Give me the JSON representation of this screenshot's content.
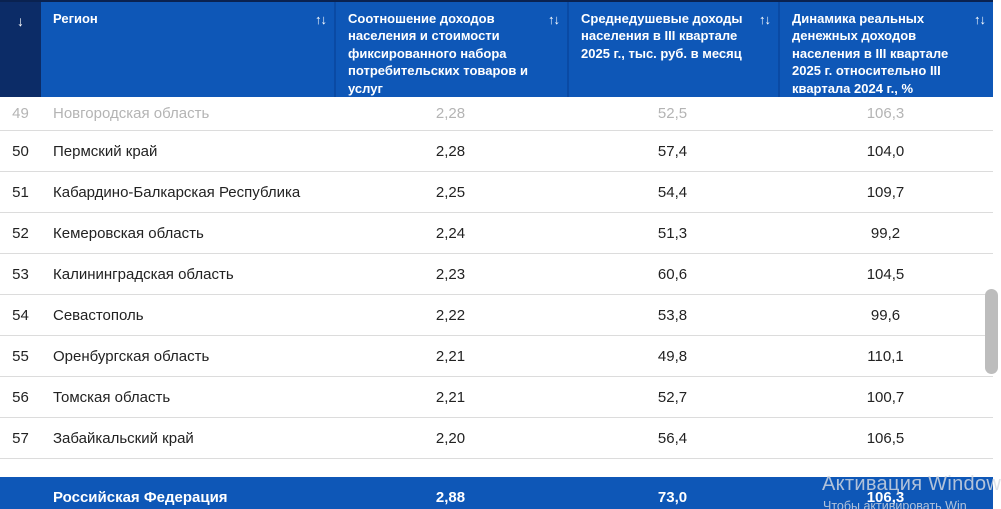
{
  "colors": {
    "header_blue": "#0e57b7",
    "rank_column_navy": "#0c2c67",
    "header_separator_blue": "#0a4aa4",
    "row_divider_gray": "#dcdcdc",
    "muted_row_text": "#b4b4b4",
    "scrollbar_thumb": "#bdbdbd"
  },
  "table": {
    "rank_header": {
      "sort_icon": "↓"
    },
    "columns": [
      {
        "label": "Регион",
        "sort_icon": "↑↓"
      },
      {
        "label": "Соотношение доходов населения и стоимости фиксированного набора потребительских товаров и услуг",
        "sort_icon": "↑↓"
      },
      {
        "label": "Среднедушевые доходы населения в III квартале 2025 г., тыс. руб. в месяц",
        "sort_icon": "↑↓"
      },
      {
        "label": "Динамика реальных денежных доходов населения в III квартале 2025 г. относительно III квартала 2024 г., %",
        "sort_icon": "↑↓"
      }
    ],
    "rows": [
      {
        "rank": "49",
        "region": "Новгородская область",
        "ratio": "2,28",
        "income": "52,5",
        "dynamics": "106,3",
        "muted": true
      },
      {
        "rank": "50",
        "region": "Пермский край",
        "ratio": "2,28",
        "income": "57,4",
        "dynamics": "104,0",
        "muted": false
      },
      {
        "rank": "51",
        "region": "Кабардино-Балкарская Республика",
        "ratio": "2,25",
        "income": "54,4",
        "dynamics": "109,7",
        "muted": false
      },
      {
        "rank": "52",
        "region": "Кемеровская область",
        "ratio": "2,24",
        "income": "51,3",
        "dynamics": "99,2",
        "muted": false
      },
      {
        "rank": "53",
        "region": "Калининградская область",
        "ratio": "2,23",
        "income": "60,6",
        "dynamics": "104,5",
        "muted": false
      },
      {
        "rank": "54",
        "region": "Севастополь",
        "ratio": "2,22",
        "income": "53,8",
        "dynamics": "99,6",
        "muted": false
      },
      {
        "rank": "55",
        "region": "Оренбургская область",
        "ratio": "2,21",
        "income": "49,8",
        "dynamics": "110,1",
        "muted": false
      },
      {
        "rank": "56",
        "region": "Томская область",
        "ratio": "2,21",
        "income": "52,7",
        "dynamics": "100,7",
        "muted": false
      },
      {
        "rank": "57",
        "region": "Забайкальский край",
        "ratio": "2,20",
        "income": "56,4",
        "dynamics": "106,5",
        "muted": false
      }
    ],
    "footer": {
      "region": "Российская Федерация",
      "ratio": "2,88",
      "income": "73,0",
      "dynamics": "106,3"
    }
  },
  "watermark": {
    "line1": "Активация Windows",
    "line2": "Чтобы активировать Win"
  }
}
